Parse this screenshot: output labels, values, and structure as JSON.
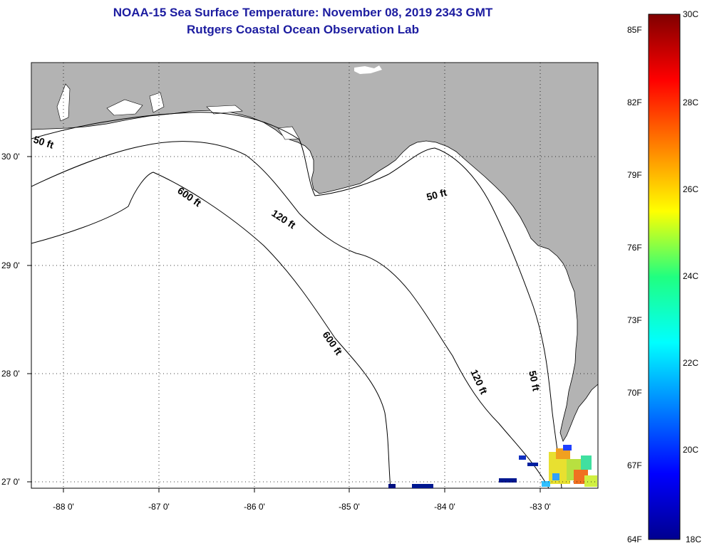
{
  "title": {
    "line1": "NOAA-15 Sea Surface Temperature:  November 08, 2019 2343 GMT",
    "line2": "Rutgers Coastal Ocean Observation Lab"
  },
  "map": {
    "lon_ticks": [
      "-88 0'",
      "-87 0'",
      "-86 0'",
      "-85 0'",
      "-84 0'",
      "-83 0'"
    ],
    "lat_ticks": [
      "30 0'",
      "29 0'",
      "28 0'",
      "27 0'"
    ],
    "contour_labels": [
      "50 ft",
      "600 ft",
      "120 ft",
      "50 ft",
      "600 ft",
      "120 ft",
      "50 ft"
    ],
    "colors": {
      "land": "#b3b3b3",
      "ocean": "#ffffff",
      "contour": "#000000"
    }
  },
  "colorbar": {
    "f_labels": [
      "85F",
      "82F",
      "79F",
      "76F",
      "73F",
      "70F",
      "67F",
      "64F"
    ],
    "c_labels": [
      "30C",
      "28C",
      "26C",
      "24C",
      "22C",
      "20C",
      "18C"
    ]
  }
}
